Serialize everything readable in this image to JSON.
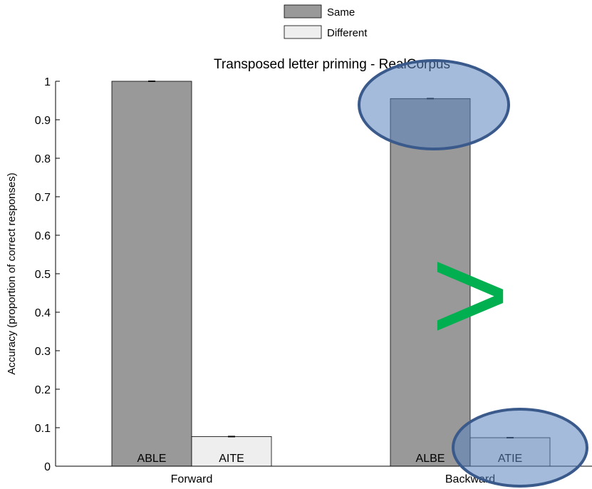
{
  "chart_data": {
    "type": "bar",
    "title": "Transposed letter priming - RealCorpus",
    "xlabel": "",
    "ylabel": "Accuracy (proportion of correct responses)",
    "categories": [
      "Forward",
      "Backward"
    ],
    "ylim": [
      0,
      1
    ],
    "yticks": [
      0,
      0.1,
      0.2,
      0.3,
      0.4,
      0.5,
      0.6,
      0.7,
      0.8,
      0.9,
      1
    ],
    "ytick_labels": [
      "0",
      "0.1",
      "0.2",
      "0.3",
      "0.4",
      "0.5",
      "0.6",
      "0.7",
      "0.8",
      "0.9",
      "1"
    ],
    "grid": false,
    "legend_position": "top-center",
    "series": [
      {
        "name": "Same",
        "color": "#999999",
        "values": [
          1.0,
          0.955
        ],
        "bar_labels": [
          "ABLE",
          "ALBE"
        ]
      },
      {
        "name": "Different",
        "color": "#eeeeee",
        "values": [
          0.077,
          0.074
        ],
        "bar_labels": [
          "AITE",
          "ATIE"
        ]
      }
    ],
    "annotations": [
      {
        "type": "ellipse-highlight",
        "target": "Backward Same bar top",
        "color": "#5b84bf"
      },
      {
        "type": "ellipse-highlight",
        "target": "Backward Different bar",
        "color": "#5b84bf"
      },
      {
        "type": "greater-than-symbol",
        "text": ">",
        "color": "#00b050"
      }
    ]
  }
}
